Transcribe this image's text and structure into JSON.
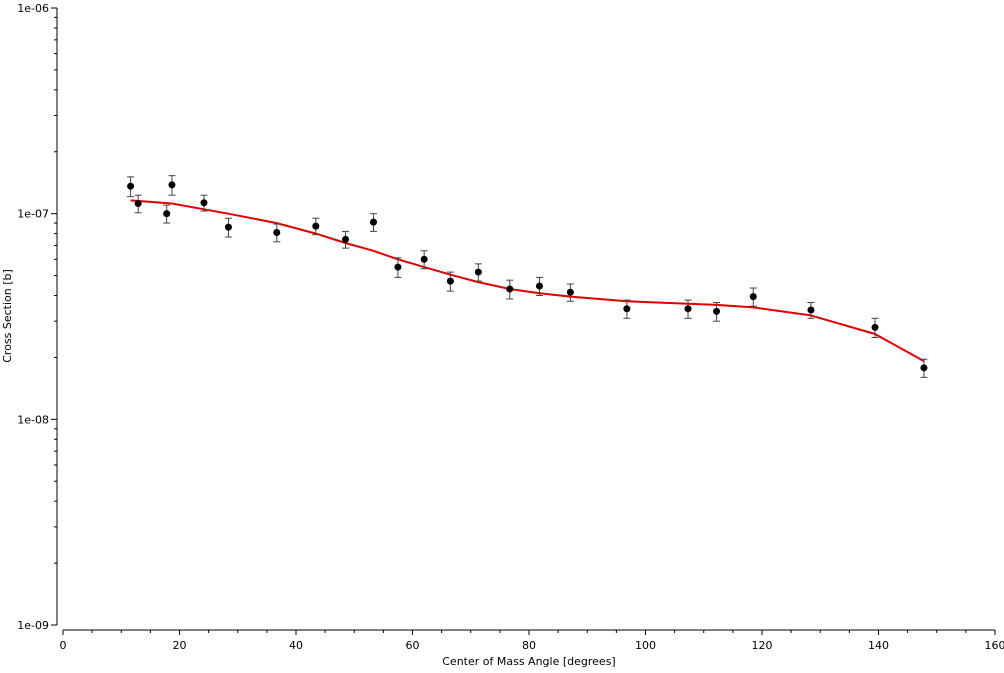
{
  "chart_data": {
    "type": "scatter",
    "title": "",
    "xlabel": "Center of Mass Angle [degrees]",
    "ylabel": "Cross Section [b]",
    "xlim": [
      0,
      160
    ],
    "ylim": [
      1e-09,
      1e-06
    ],
    "yscale": "log",
    "grid": false,
    "legend": "none",
    "x_ticks": [
      0,
      20,
      40,
      60,
      80,
      100,
      120,
      140,
      160
    ],
    "x_tick_labels": [
      "0",
      "20",
      "40",
      "60",
      "80",
      "100",
      "120",
      "140",
      "160"
    ],
    "y_ticks": [
      1e-09,
      1e-08,
      1e-07,
      1e-06
    ],
    "y_tick_labels": [
      "1e-09",
      "1e-08",
      "1e-07",
      "1e-06"
    ],
    "series": [
      {
        "kind": "points_with_error_bars",
        "color": "#000000",
        "points": [
          {
            "x": 11.6,
            "y": 1.36e-07,
            "err": 1.5e-08
          },
          {
            "x": 12.9,
            "y": 1.12e-07,
            "err": 1.1e-08
          },
          {
            "x": 17.8,
            "y": 1e-07,
            "err": 1e-08
          },
          {
            "x": 18.7,
            "y": 1.38e-07,
            "err": 1.5e-08
          },
          {
            "x": 24.2,
            "y": 1.13e-07,
            "err": 1e-08
          },
          {
            "x": 28.4,
            "y": 8.6e-08,
            "err": 9e-09
          },
          {
            "x": 36.7,
            "y": 8.1e-08,
            "err": 8e-09
          },
          {
            "x": 43.4,
            "y": 8.7e-08,
            "err": 8e-09
          },
          {
            "x": 48.5,
            "y": 7.5e-08,
            "err": 7e-09
          },
          {
            "x": 53.3,
            "y": 9.1e-08,
            "err": 9e-09
          },
          {
            "x": 57.5,
            "y": 5.5e-08,
            "err": 6e-09
          },
          {
            "x": 62.0,
            "y": 6e-08,
            "err": 6e-09
          },
          {
            "x": 66.5,
            "y": 4.7e-08,
            "err": 5e-09
          },
          {
            "x": 71.3,
            "y": 5.2e-08,
            "err": 5e-09
          },
          {
            "x": 76.7,
            "y": 4.3e-08,
            "err": 4.5e-09
          },
          {
            "x": 81.8,
            "y": 4.45e-08,
            "err": 4.5e-09
          },
          {
            "x": 87.1,
            "y": 4.15e-08,
            "err": 4e-09
          },
          {
            "x": 96.8,
            "y": 3.45e-08,
            "err": 3.5e-09
          },
          {
            "x": 107.3,
            "y": 3.45e-08,
            "err": 3.5e-09
          },
          {
            "x": 112.2,
            "y": 3.35e-08,
            "err": 3.5e-09
          },
          {
            "x": 118.5,
            "y": 3.95e-08,
            "err": 4e-09
          },
          {
            "x": 128.4,
            "y": 3.4e-08,
            "err": 3e-09
          },
          {
            "x": 139.4,
            "y": 2.8e-08,
            "err": 3e-09
          },
          {
            "x": 147.8,
            "y": 1.78e-08,
            "err": 1.8e-09
          }
        ]
      },
      {
        "kind": "line",
        "color": "#e00000",
        "x": [
          11.6,
          18.7,
          24.2,
          28.4,
          36.7,
          43.4,
          48.5,
          53.3,
          57.5,
          62.0,
          66.5,
          71.3,
          76.7,
          81.8,
          87.1,
          96.8,
          107.3,
          112.2,
          118.5,
          128.4,
          139.4,
          147.8
        ],
        "y": [
          1.16e-07,
          1.12e-07,
          1.05e-07,
          1e-07,
          9e-08,
          8e-08,
          7.2e-08,
          6.6e-08,
          6e-08,
          5.5e-08,
          5.05e-08,
          4.65e-08,
          4.3e-08,
          4.1e-08,
          3.95e-08,
          3.75e-08,
          3.65e-08,
          3.6e-08,
          3.5e-08,
          3.2e-08,
          2.6e-08,
          1.92e-08
        ]
      }
    ]
  }
}
